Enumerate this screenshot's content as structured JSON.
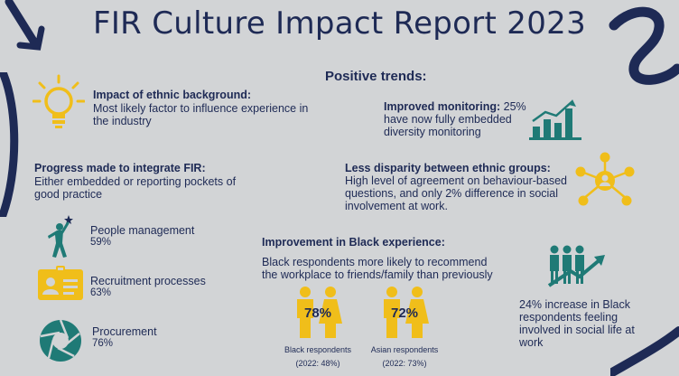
{
  "title": "FIR Culture Impact Report 2023",
  "positive_trends": "Positive trends:",
  "ethnic": {
    "heading": "Impact of ethnic background:",
    "text": "Most likely factor to influence experience in the industry"
  },
  "progress": {
    "heading": "Progress made to integrate FIR:",
    "text": "Either embedded or reporting pockets of good practice",
    "items": [
      {
        "label": "People management",
        "value": "59%"
      },
      {
        "label": "Recruitment processes",
        "value": "63%"
      },
      {
        "label": "Procurement",
        "value": "76%"
      }
    ]
  },
  "monitoring": {
    "heading": "Improved monitoring:",
    "text_inline": "25%",
    "text_rest": "have now fully embedded diversity monitoring"
  },
  "disparity": {
    "heading": "Less disparity between ethnic groups:",
    "text": "High level of agreement on behaviour-based questions, and only 2% difference in social involvement at work."
  },
  "black": {
    "heading": "Improvement in Black experience:",
    "text": "Black respondents more likely to recommend the workplace to friends/family than previously",
    "groups": [
      {
        "pct": "78%",
        "label": "Black respondents",
        "sub": "(2022: 48%)"
      },
      {
        "pct": "72%",
        "label": "Asian respondents",
        "sub": "(2022: 73%)"
      }
    ]
  },
  "involved": {
    "text": "24% increase in Black respondents feeling involved in social life at work"
  },
  "colors": {
    "navy": "#1e2a55",
    "teal": "#1f7a76",
    "gold": "#f0be1a",
    "background": "#d2d4d6"
  },
  "icons": [
    "lightbulb-icon",
    "bar-chart-icon",
    "network-icon",
    "person-star-icon",
    "id-badge-icon",
    "aperture-icon",
    "people-pair-icon",
    "group-growth-icon"
  ]
}
